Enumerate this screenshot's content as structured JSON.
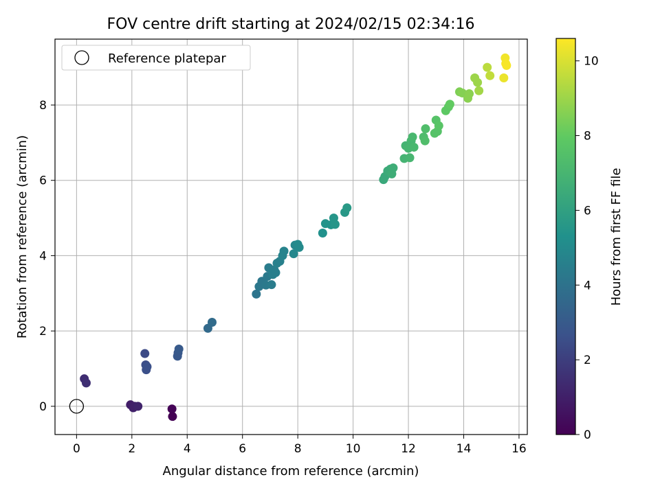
{
  "chart_data": {
    "type": "scatter",
    "title": "FOV centre drift starting at 2024/02/15 02:34:16",
    "xlabel": "Angular distance from reference (arcmin)",
    "ylabel": "Rotation from reference (arcmin)",
    "xlim": [
      -0.78,
      16.3
    ],
    "ylim": [
      -0.75,
      9.75
    ],
    "x_ticks": [
      0,
      2,
      4,
      6,
      8,
      10,
      12,
      14,
      16
    ],
    "y_ticks": [
      0,
      2,
      4,
      6,
      8
    ],
    "grid": true,
    "legend": {
      "placement": "top-left",
      "entries": [
        "Reference platepar"
      ]
    },
    "reference_point": {
      "x": 0,
      "y": 0,
      "label": "Reference platepar"
    },
    "colorbar": {
      "label": "Hours from first FF file",
      "range": [
        0,
        10.6
      ],
      "ticks": [
        0,
        2,
        4,
        6,
        8,
        10
      ],
      "colormap": "viridis"
    },
    "points": [
      {
        "x": 0.28,
        "y": 0.73,
        "h": 1.4
      },
      {
        "x": 0.35,
        "y": 0.62,
        "h": 1.5
      },
      {
        "x": 1.95,
        "y": 0.04,
        "h": 0.9
      },
      {
        "x": 2.05,
        "y": -0.04,
        "h": 1.0
      },
      {
        "x": 2.1,
        "y": 0.0,
        "h": 1.0
      },
      {
        "x": 2.22,
        "y": 0.0,
        "h": 1.1
      },
      {
        "x": 3.45,
        "y": -0.07,
        "h": 0.1
      },
      {
        "x": 3.47,
        "y": -0.27,
        "h": 0.0
      },
      {
        "x": 2.47,
        "y": 1.4,
        "h": 2.4
      },
      {
        "x": 2.5,
        "y": 1.1,
        "h": 2.5
      },
      {
        "x": 2.55,
        "y": 1.05,
        "h": 2.6
      },
      {
        "x": 2.52,
        "y": 0.97,
        "h": 2.6
      },
      {
        "x": 3.65,
        "y": 1.33,
        "h": 2.9
      },
      {
        "x": 3.67,
        "y": 1.42,
        "h": 2.9
      },
      {
        "x": 3.7,
        "y": 1.52,
        "h": 3.0
      },
      {
        "x": 4.75,
        "y": 2.07,
        "h": 3.6
      },
      {
        "x": 4.9,
        "y": 2.23,
        "h": 3.7
      },
      {
        "x": 6.5,
        "y": 2.98,
        "h": 4.1
      },
      {
        "x": 6.6,
        "y": 3.18,
        "h": 4.2
      },
      {
        "x": 6.7,
        "y": 3.32,
        "h": 4.2
      },
      {
        "x": 6.85,
        "y": 3.22,
        "h": 4.3
      },
      {
        "x": 6.9,
        "y": 3.45,
        "h": 4.3
      },
      {
        "x": 6.95,
        "y": 3.68,
        "h": 4.4
      },
      {
        "x": 7.05,
        "y": 3.23,
        "h": 4.4
      },
      {
        "x": 7.1,
        "y": 3.5,
        "h": 4.5
      },
      {
        "x": 7.15,
        "y": 3.62,
        "h": 4.5
      },
      {
        "x": 7.2,
        "y": 3.55,
        "h": 4.5
      },
      {
        "x": 7.25,
        "y": 3.8,
        "h": 4.6
      },
      {
        "x": 7.35,
        "y": 3.85,
        "h": 4.6
      },
      {
        "x": 7.45,
        "y": 4.0,
        "h": 4.7
      },
      {
        "x": 7.5,
        "y": 4.12,
        "h": 4.7
      },
      {
        "x": 7.85,
        "y": 4.05,
        "h": 4.9
      },
      {
        "x": 7.9,
        "y": 4.28,
        "h": 4.9
      },
      {
        "x": 8.0,
        "y": 4.3,
        "h": 5.0
      },
      {
        "x": 8.05,
        "y": 4.22,
        "h": 5.0
      },
      {
        "x": 8.9,
        "y": 4.6,
        "h": 5.3
      },
      {
        "x": 9.0,
        "y": 4.85,
        "h": 5.4
      },
      {
        "x": 9.2,
        "y": 4.82,
        "h": 5.4
      },
      {
        "x": 9.3,
        "y": 5.0,
        "h": 5.5
      },
      {
        "x": 9.35,
        "y": 4.83,
        "h": 5.5
      },
      {
        "x": 9.7,
        "y": 5.15,
        "h": 5.6
      },
      {
        "x": 9.78,
        "y": 5.27,
        "h": 5.7
      },
      {
        "x": 11.1,
        "y": 6.02,
        "h": 6.4
      },
      {
        "x": 11.15,
        "y": 6.1,
        "h": 6.4
      },
      {
        "x": 11.25,
        "y": 6.25,
        "h": 6.5
      },
      {
        "x": 11.35,
        "y": 6.3,
        "h": 6.5
      },
      {
        "x": 11.4,
        "y": 6.17,
        "h": 6.6
      },
      {
        "x": 11.45,
        "y": 6.33,
        "h": 6.6
      },
      {
        "x": 11.85,
        "y": 6.58,
        "h": 6.9
      },
      {
        "x": 11.9,
        "y": 6.92,
        "h": 6.9
      },
      {
        "x": 12.0,
        "y": 6.85,
        "h": 7.0
      },
      {
        "x": 12.05,
        "y": 6.6,
        "h": 7.0
      },
      {
        "x": 12.1,
        "y": 7.05,
        "h": 7.0
      },
      {
        "x": 12.15,
        "y": 7.15,
        "h": 7.1
      },
      {
        "x": 12.2,
        "y": 6.88,
        "h": 7.1
      },
      {
        "x": 12.55,
        "y": 7.15,
        "h": 7.3
      },
      {
        "x": 12.6,
        "y": 7.05,
        "h": 7.4
      },
      {
        "x": 12.62,
        "y": 7.37,
        "h": 7.4
      },
      {
        "x": 12.95,
        "y": 7.25,
        "h": 7.6
      },
      {
        "x": 13.0,
        "y": 7.6,
        "h": 7.6
      },
      {
        "x": 13.05,
        "y": 7.3,
        "h": 7.6
      },
      {
        "x": 13.1,
        "y": 7.45,
        "h": 7.7
      },
      {
        "x": 13.35,
        "y": 7.85,
        "h": 7.9
      },
      {
        "x": 13.45,
        "y": 7.95,
        "h": 7.9
      },
      {
        "x": 13.5,
        "y": 8.02,
        "h": 8.0
      },
      {
        "x": 13.85,
        "y": 8.35,
        "h": 8.5
      },
      {
        "x": 13.95,
        "y": 8.32,
        "h": 8.6
      },
      {
        "x": 14.15,
        "y": 8.18,
        "h": 8.7
      },
      {
        "x": 14.2,
        "y": 8.3,
        "h": 8.7
      },
      {
        "x": 14.4,
        "y": 8.72,
        "h": 9.0
      },
      {
        "x": 14.5,
        "y": 8.6,
        "h": 9.0
      },
      {
        "x": 14.55,
        "y": 8.38,
        "h": 9.1
      },
      {
        "x": 14.85,
        "y": 9.0,
        "h": 9.5
      },
      {
        "x": 14.95,
        "y": 8.78,
        "h": 9.6
      },
      {
        "x": 15.45,
        "y": 8.72,
        "h": 10.3
      },
      {
        "x": 15.5,
        "y": 9.25,
        "h": 10.4
      },
      {
        "x": 15.52,
        "y": 9.1,
        "h": 10.5
      },
      {
        "x": 15.55,
        "y": 9.05,
        "h": 10.5
      }
    ]
  }
}
